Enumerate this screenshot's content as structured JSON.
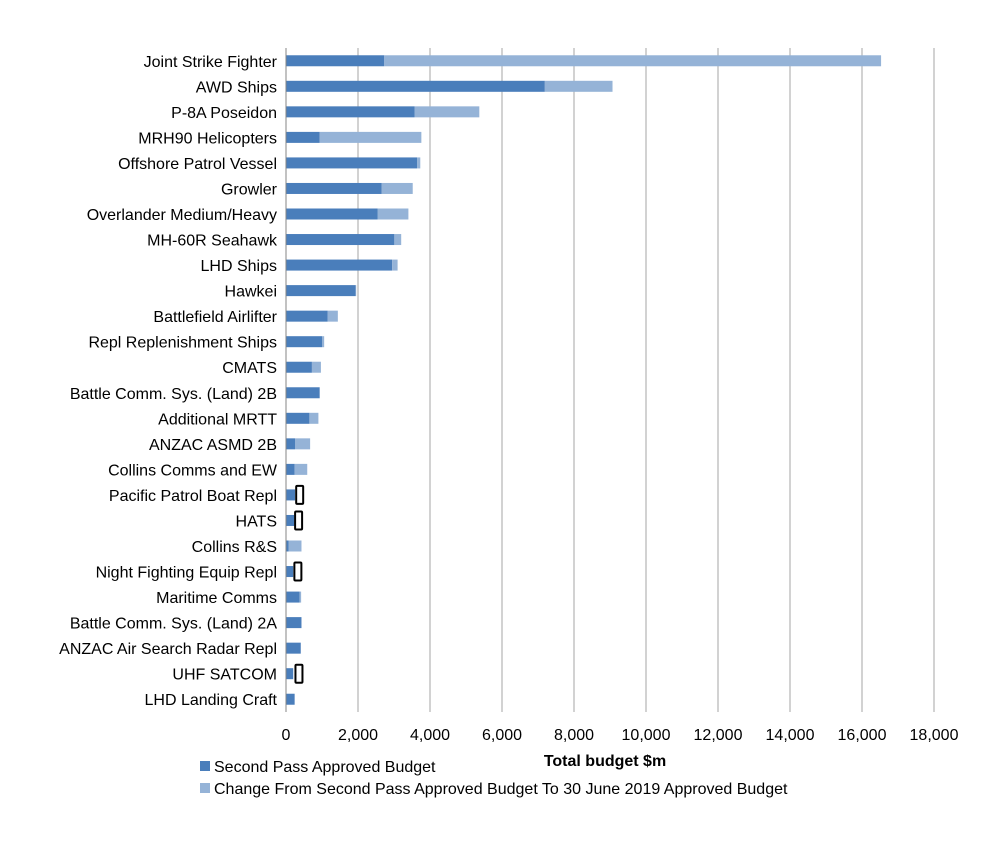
{
  "chart_data": {
    "type": "bar",
    "orientation": "horizontal",
    "stacked": true,
    "title": "",
    "xlabel": "Total budget $m",
    "ylabel": "",
    "xlim": [
      0,
      18000
    ],
    "xticks": [
      0,
      2000,
      4000,
      6000,
      8000,
      10000,
      12000,
      14000,
      16000,
      18000
    ],
    "xtick_labels": [
      "0",
      "2,000",
      "4,000",
      "6,000",
      "8,000",
      "10,000",
      "12,000",
      "14,000",
      "16,000",
      "18,000"
    ],
    "grid": "vertical",
    "legend_position": "bottom",
    "categories": [
      "Joint Strike Fighter",
      "AWD Ships",
      "P-8A Poseidon",
      "MRH90 Helicopters",
      "Offshore Patrol Vessel",
      "Growler",
      "Overlander Medium/Heavy",
      "MH-60R Seahawk",
      "LHD Ships",
      "Hawkei",
      "Battlefield Airlifter",
      "Repl Replenishment Ships",
      "CMATS",
      "Battle Comm. Sys. (Land) 2B",
      "Additional MRTT",
      "ANZAC ASMD 2B",
      "Collins Comms and EW",
      "Pacific Patrol Boat Repl",
      "HATS",
      "Collins R&S",
      "Night Fighting Equip Repl",
      "Maritime Comms",
      "Battle Comm. Sys. (Land) 2A",
      "ANZAC Air Search Radar Repl",
      "UHF SATCOM",
      "LHD Landing Craft"
    ],
    "series": [
      {
        "name": "Second Pass Approved Budget",
        "color": "#4a7ebb",
        "values": [
          2730,
          7190,
          3570,
          930,
          3640,
          2660,
          2550,
          3010,
          2950,
          1930,
          1160,
          1000,
          720,
          930,
          650,
          250,
          240,
          250,
          230,
          70,
          200,
          380,
          430,
          410,
          200,
          240
        ]
      },
      {
        "name": "Change From Second Pass Approved Budget To 30 June 2019 Approved Budget",
        "color": "#95b3d7",
        "values": [
          13800,
          1880,
          1800,
          2830,
          90,
          860,
          850,
          190,
          150,
          20,
          280,
          60,
          250,
          10,
          250,
          420,
          350,
          0,
          0,
          360,
          0,
          40,
          0,
          0,
          0,
          0
        ]
      }
    ],
    "highlighted_categories": [
      "Pacific Patrol Boat Repl",
      "HATS",
      "Night Fighting Equip Repl",
      "UHF SATCOM"
    ],
    "highlight_values": [
      380,
      350,
      330,
      360
    ],
    "highlight_style": {
      "stroke": "#000000",
      "fill": "#ffffff"
    }
  }
}
